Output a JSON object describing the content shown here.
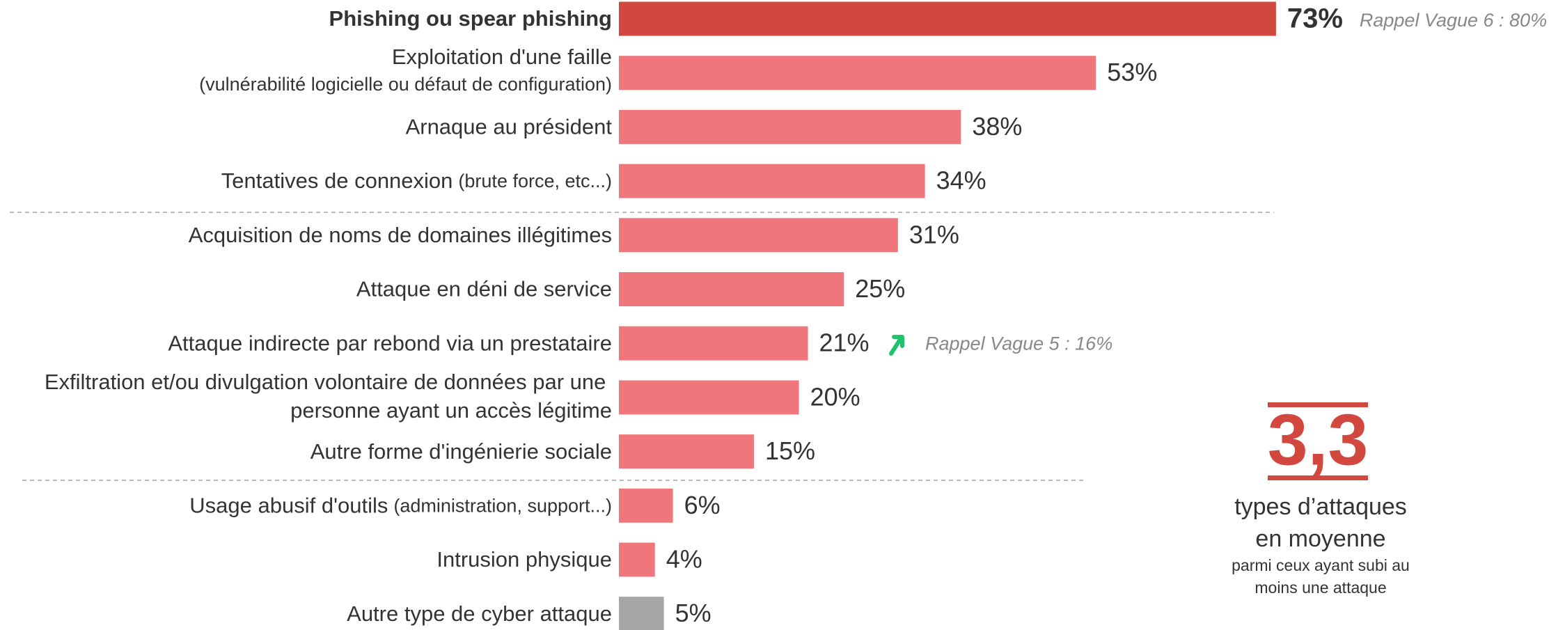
{
  "chart_data": {
    "type": "bar",
    "categories": [
      "Phishing ou spear phishing",
      "Exploitation d'une faille",
      "Arnaque au président",
      "Tentatives de connexion",
      "Acquisition de noms de domaines illégitimes",
      "Attaque en déni de service",
      "Attaque indirecte par rebond via un prestataire",
      "Exfiltration et/ou divulgation volontaire de données par une personne ayant un accès légitime",
      "Autre forme d'ingénierie sociale",
      "Usage abusif d'outils",
      "Intrusion physique",
      "Autre type de cyber attaque"
    ],
    "category_details": [
      null,
      "(vulnérabilité logicielle ou défaut de configuration)",
      null,
      "(brute force, etc...)",
      null,
      null,
      null,
      null,
      null,
      "(administration, support...)",
      null,
      null
    ],
    "values": [
      73,
      53,
      38,
      34,
      31,
      25,
      21,
      20,
      15,
      6,
      4,
      5
    ],
    "value_labels": [
      "73%",
      "53%",
      "38%",
      "34%",
      "31%",
      "25%",
      "21%",
      "20%",
      "15%",
      "6%",
      "4%",
      "5%"
    ],
    "colors": [
      "#d2483f",
      "#ef767b",
      "#ef767b",
      "#ef767b",
      "#ef767b",
      "#ef767b",
      "#ef767b",
      "#ef767b",
      "#ef767b",
      "#ef767b",
      "#ef767b",
      "#a6a6a6"
    ],
    "annotations": [
      "Rappel Vague 6 : 80%",
      "Rappel Vague 5 : 16%"
    ],
    "summary": {
      "value": "3,3",
      "lines": [
        "types d’attaques",
        "en moyenne"
      ],
      "notes": [
        "parmi ceux ayant subi au",
        "moins une attaque"
      ]
    }
  }
}
